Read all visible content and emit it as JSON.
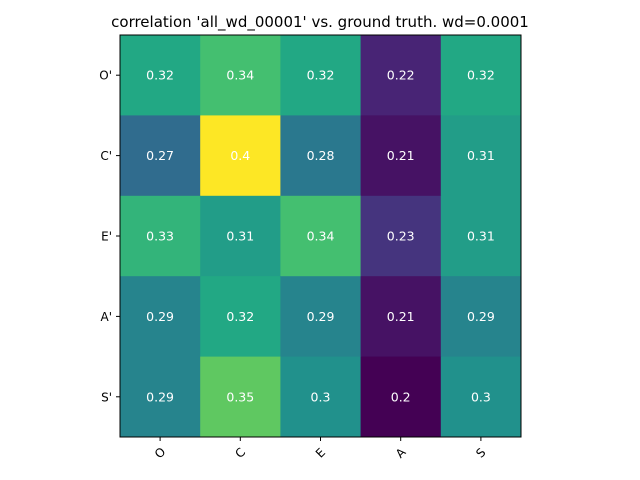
{
  "chart_data": {
    "type": "heatmap",
    "title": "correlation 'all_wd_00001' vs. ground truth. wd=0.0001",
    "x_labels": [
      "O",
      "C",
      "E",
      "A",
      "S"
    ],
    "y_labels": [
      "O'",
      "C'",
      "E'",
      "A'",
      "S'"
    ],
    "values": [
      [
        0.32,
        0.34,
        0.32,
        0.22,
        0.32
      ],
      [
        0.27,
        0.4,
        0.28,
        0.21,
        0.31
      ],
      [
        0.33,
        0.31,
        0.34,
        0.23,
        0.31
      ],
      [
        0.29,
        0.32,
        0.29,
        0.21,
        0.29
      ],
      [
        0.29,
        0.35,
        0.3,
        0.2,
        0.3
      ]
    ],
    "value_labels": [
      [
        "0.32",
        "0.34",
        "0.32",
        "0.22",
        "0.32"
      ],
      [
        "0.27",
        "0.4",
        "0.28",
        "0.21",
        "0.31"
      ],
      [
        "0.33",
        "0.31",
        "0.34",
        "0.23",
        "0.31"
      ],
      [
        "0.29",
        "0.32",
        "0.29",
        "0.21",
        "0.29"
      ],
      [
        "0.29",
        "0.35",
        "0.3",
        "0.2",
        "0.3"
      ]
    ],
    "colormap": "viridis",
    "color_range": [
      0.2,
      0.4
    ],
    "x_tick_rotation_deg": 45,
    "grid": false,
    "text_color": "#ffffff"
  }
}
